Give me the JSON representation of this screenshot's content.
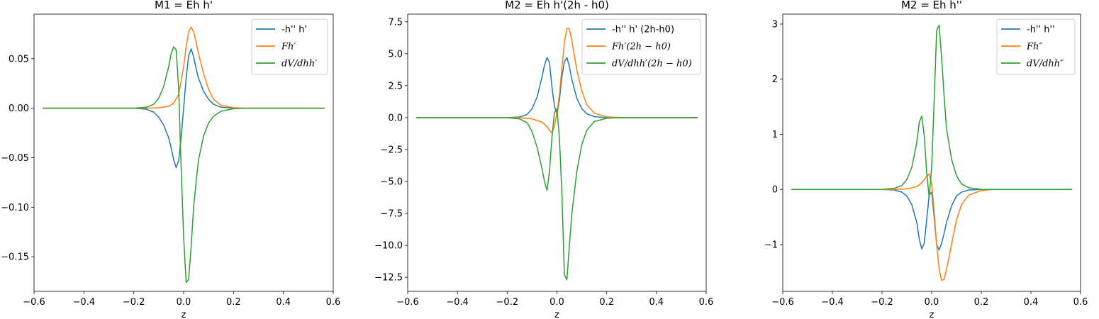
{
  "chart_data": [
    {
      "type": "line",
      "title": "M1 = Eh h'",
      "xlabel": "z",
      "ylabel": "",
      "xlim": [
        -0.6,
        0.6
      ],
      "ylim": [
        -0.185,
        0.095
      ],
      "xticks": [
        -0.6,
        -0.4,
        -0.2,
        0.0,
        0.2,
        0.4,
        0.6
      ],
      "xtick_labels": [
        "−0.6",
        "−0.4",
        "−0.2",
        "0.0",
        "0.2",
        "0.4",
        "0.6"
      ],
      "yticks": [
        -0.15,
        -0.1,
        -0.05,
        0.0,
        0.05
      ],
      "ytick_labels": [
        "−0.15",
        "−0.10",
        "−0.05",
        "0.00",
        "0.05"
      ],
      "legend_position": "top-right",
      "series": [
        {
          "name": "-h'' h'",
          "italic": false,
          "color": "#1f77b4",
          "points": [
            [
              -0.566,
              0
            ],
            [
              -0.2,
              0
            ],
            [
              -0.15,
              -0.001
            ],
            [
              -0.12,
              -0.004
            ],
            [
              -0.1,
              -0.009
            ],
            [
              -0.08,
              -0.017
            ],
            [
              -0.06,
              -0.03
            ],
            [
              -0.05,
              -0.04
            ],
            [
              -0.04,
              -0.052
            ],
            [
              -0.03,
              -0.06
            ],
            [
              -0.02,
              -0.053
            ],
            [
              -0.01,
              -0.03
            ],
            [
              0.0,
              0.0
            ],
            [
              0.01,
              0.03
            ],
            [
              0.02,
              0.053
            ],
            [
              0.03,
              0.06
            ],
            [
              0.04,
              0.052
            ],
            [
              0.05,
              0.04
            ],
            [
              0.06,
              0.03
            ],
            [
              0.08,
              0.017
            ],
            [
              0.1,
              0.009
            ],
            [
              0.12,
              0.004
            ],
            [
              0.15,
              0.001
            ],
            [
              0.2,
              0
            ],
            [
              0.566,
              0
            ]
          ]
        },
        {
          "name": "Fh′",
          "italic": true,
          "color": "#ff7f0e",
          "points": [
            [
              -0.566,
              0
            ],
            [
              -0.15,
              0
            ],
            [
              -0.1,
              0.0005
            ],
            [
              -0.06,
              0.002
            ],
            [
              -0.04,
              0.005
            ],
            [
              -0.02,
              0.014
            ],
            [
              0.0,
              0.042
            ],
            [
              0.01,
              0.062
            ],
            [
              0.02,
              0.077
            ],
            [
              0.03,
              0.082
            ],
            [
              0.04,
              0.077
            ],
            [
              0.05,
              0.067
            ],
            [
              0.06,
              0.055
            ],
            [
              0.08,
              0.035
            ],
            [
              0.1,
              0.019
            ],
            [
              0.12,
              0.009
            ],
            [
              0.15,
              0.003
            ],
            [
              0.2,
              0.0005
            ],
            [
              0.25,
              0
            ],
            [
              0.566,
              0
            ]
          ]
        },
        {
          "name": "dV/dhh′",
          "italic": true,
          "color": "#2ca02c",
          "points": [
            [
              -0.566,
              0
            ],
            [
              -0.2,
              0
            ],
            [
              -0.15,
              0.001
            ],
            [
              -0.12,
              0.004
            ],
            [
              -0.1,
              0.01
            ],
            [
              -0.08,
              0.022
            ],
            [
              -0.06,
              0.042
            ],
            [
              -0.05,
              0.055
            ],
            [
              -0.04,
              0.062
            ],
            [
              -0.03,
              0.059
            ],
            [
              -0.02,
              0.02
            ],
            [
              -0.01,
              -0.06
            ],
            [
              0.0,
              -0.13
            ],
            [
              0.01,
              -0.176
            ],
            [
              0.02,
              -0.173
            ],
            [
              0.03,
              -0.14
            ],
            [
              0.04,
              -0.1
            ],
            [
              0.05,
              -0.075
            ],
            [
              0.06,
              -0.052
            ],
            [
              0.08,
              -0.028
            ],
            [
              0.1,
              -0.015
            ],
            [
              0.12,
              -0.008
            ],
            [
              0.15,
              -0.003
            ],
            [
              0.2,
              -0.0005
            ],
            [
              0.25,
              0
            ],
            [
              0.566,
              0
            ]
          ]
        }
      ]
    },
    {
      "type": "line",
      "title": "M2 = Eh h'(2h - h0)",
      "xlabel": "z",
      "ylabel": "",
      "xlim": [
        -0.6,
        0.6
      ],
      "ylim": [
        -13.6,
        8.1
      ],
      "xticks": [
        -0.6,
        -0.4,
        -0.2,
        0.0,
        0.2,
        0.4,
        0.6
      ],
      "xtick_labels": [
        "−0.6",
        "−0.4",
        "−0.2",
        "0.0",
        "0.2",
        "0.4",
        "0.6"
      ],
      "yticks": [
        -12.5,
        -10.0,
        -7.5,
        -5.0,
        -2.5,
        0.0,
        2.5,
        5.0,
        7.5
      ],
      "ytick_labels": [
        "−12.5",
        "−10.0",
        "−7.5",
        "−5.0",
        "−2.5",
        "0.0",
        "2.5",
        "5.0",
        "7.5"
      ],
      "legend_position": "top-right",
      "series": [
        {
          "name": "-h'' h' (2h-h0)",
          "italic": false,
          "color": "#1f77b4",
          "points": [
            [
              -0.566,
              0
            ],
            [
              -0.2,
              0
            ],
            [
              -0.15,
              0.05
            ],
            [
              -0.12,
              0.25
            ],
            [
              -0.1,
              0.7
            ],
            [
              -0.08,
              1.6
            ],
            [
              -0.06,
              3.2
            ],
            [
              -0.05,
              4.1
            ],
            [
              -0.04,
              4.7
            ],
            [
              -0.03,
              4.3
            ],
            [
              -0.02,
              2.4
            ],
            [
              -0.01,
              0.9
            ],
            [
              0.0,
              0.3
            ],
            [
              0.01,
              1.4
            ],
            [
              0.02,
              3.2
            ],
            [
              0.03,
              4.4
            ],
            [
              0.04,
              4.7
            ],
            [
              0.05,
              4.0
            ],
            [
              0.06,
              3.0
            ],
            [
              0.08,
              1.5
            ],
            [
              0.1,
              0.7
            ],
            [
              0.12,
              0.3
            ],
            [
              0.15,
              0.08
            ],
            [
              0.2,
              0
            ],
            [
              0.566,
              0
            ]
          ]
        },
        {
          "name": "Fh′(2h − h0)",
          "italic": true,
          "color": "#ff7f0e",
          "points": [
            [
              -0.566,
              0
            ],
            [
              -0.15,
              0
            ],
            [
              -0.1,
              -0.1
            ],
            [
              -0.06,
              -0.35
            ],
            [
              -0.04,
              -0.7
            ],
            [
              -0.03,
              -1.0
            ],
            [
              -0.02,
              -1.2
            ],
            [
              -0.01,
              -0.7
            ],
            [
              0.0,
              0.4
            ],
            [
              0.01,
              1.8
            ],
            [
              0.02,
              3.9
            ],
            [
              0.03,
              5.9
            ],
            [
              0.04,
              7.0
            ],
            [
              0.05,
              6.95
            ],
            [
              0.06,
              6.0
            ],
            [
              0.08,
              3.7
            ],
            [
              0.1,
              2.1
            ],
            [
              0.12,
              1.0
            ],
            [
              0.15,
              0.35
            ],
            [
              0.2,
              0.05
            ],
            [
              0.25,
              0
            ],
            [
              0.566,
              0
            ]
          ]
        },
        {
          "name": "dV/dhh′(2h − h0)",
          "italic": true,
          "color": "#2ca02c",
          "points": [
            [
              -0.566,
              0
            ],
            [
              -0.2,
              0
            ],
            [
              -0.15,
              -0.1
            ],
            [
              -0.12,
              -0.4
            ],
            [
              -0.1,
              -1.1
            ],
            [
              -0.08,
              -2.3
            ],
            [
              -0.06,
              -4.0
            ],
            [
              -0.05,
              -5.0
            ],
            [
              -0.04,
              -5.7
            ],
            [
              -0.03,
              -4.2
            ],
            [
              -0.02,
              -1.5
            ],
            [
              -0.01,
              0.4
            ],
            [
              0.0,
              0.7
            ],
            [
              0.01,
              -1.6
            ],
            [
              0.02,
              -6.0
            ],
            [
              0.03,
              -12.3
            ],
            [
              0.04,
              -12.7
            ],
            [
              0.05,
              -10.0
            ],
            [
              0.06,
              -7.5
            ],
            [
              0.08,
              -4.2
            ],
            [
              0.1,
              -2.1
            ],
            [
              0.12,
              -1.0
            ],
            [
              0.15,
              -0.3
            ],
            [
              0.2,
              -0.05
            ],
            [
              0.25,
              0
            ],
            [
              0.566,
              0
            ]
          ]
        }
      ]
    },
    {
      "type": "line",
      "title": "M2 = Eh h''",
      "xlabel": "z",
      "ylabel": "",
      "xlim": [
        -0.6,
        0.6
      ],
      "ylim": [
        -1.85,
        3.18
      ],
      "xticks": [
        -0.6,
        -0.4,
        -0.2,
        0.0,
        0.2,
        0.4,
        0.6
      ],
      "xtick_labels": [
        "−0.6",
        "−0.4",
        "−0.2",
        "0.0",
        "0.2",
        "0.4",
        "0.6"
      ],
      "yticks": [
        -1,
        0,
        1,
        2,
        3
      ],
      "ytick_labels": [
        "−1",
        "0",
        "1",
        "2",
        "3"
      ],
      "legend_position": "top-right",
      "series": [
        {
          "name": "-h'' h''",
          "italic": false,
          "color": "#1f77b4",
          "points": [
            [
              -0.566,
              0
            ],
            [
              -0.2,
              0
            ],
            [
              -0.15,
              -0.01
            ],
            [
              -0.12,
              -0.05
            ],
            [
              -0.1,
              -0.12
            ],
            [
              -0.08,
              -0.28
            ],
            [
              -0.06,
              -0.6
            ],
            [
              -0.05,
              -0.9
            ],
            [
              -0.04,
              -1.08
            ],
            [
              -0.03,
              -0.98
            ],
            [
              -0.02,
              -0.55
            ],
            [
              -0.01,
              -0.1
            ],
            [
              0.0,
              -0.05
            ],
            [
              0.01,
              -0.5
            ],
            [
              0.02,
              -1.0
            ],
            [
              0.03,
              -1.1
            ],
            [
              0.04,
              -0.98
            ],
            [
              0.05,
              -0.8
            ],
            [
              0.06,
              -0.6
            ],
            [
              0.08,
              -0.3
            ],
            [
              0.1,
              -0.12
            ],
            [
              0.12,
              -0.05
            ],
            [
              0.15,
              -0.01
            ],
            [
              0.2,
              0
            ],
            [
              0.566,
              0
            ]
          ]
        },
        {
          "name": "Fh″",
          "italic": true,
          "color": "#ff7f0e",
          "points": [
            [
              -0.566,
              0
            ],
            [
              -0.15,
              0
            ],
            [
              -0.1,
              0.01
            ],
            [
              -0.06,
              0.05
            ],
            [
              -0.04,
              0.12
            ],
            [
              -0.02,
              0.24
            ],
            [
              -0.01,
              0.28
            ],
            [
              0.0,
              0.1
            ],
            [
              0.01,
              -0.4
            ],
            [
              0.02,
              -1.0
            ],
            [
              0.03,
              -1.45
            ],
            [
              0.04,
              -1.65
            ],
            [
              0.05,
              -1.63
            ],
            [
              0.06,
              -1.45
            ],
            [
              0.08,
              -1.0
            ],
            [
              0.1,
              -0.55
            ],
            [
              0.12,
              -0.28
            ],
            [
              0.15,
              -0.1
            ],
            [
              0.2,
              -0.02
            ],
            [
              0.25,
              0
            ],
            [
              0.566,
              0
            ]
          ]
        },
        {
          "name": "dV/dhh″",
          "italic": true,
          "color": "#2ca02c",
          "points": [
            [
              -0.566,
              0
            ],
            [
              -0.2,
              0
            ],
            [
              -0.15,
              0.02
            ],
            [
              -0.12,
              0.07
            ],
            [
              -0.1,
              0.18
            ],
            [
              -0.08,
              0.4
            ],
            [
              -0.06,
              0.85
            ],
            [
              -0.05,
              1.22
            ],
            [
              -0.04,
              1.33
            ],
            [
              -0.03,
              0.98
            ],
            [
              -0.02,
              0.3
            ],
            [
              -0.01,
              -0.15
            ],
            [
              0.0,
              0.4
            ],
            [
              0.01,
              1.6
            ],
            [
              0.02,
              2.88
            ],
            [
              0.03,
              2.98
            ],
            [
              0.04,
              2.4
            ],
            [
              0.05,
              1.7
            ],
            [
              0.06,
              1.1
            ],
            [
              0.08,
              0.55
            ],
            [
              0.1,
              0.25
            ],
            [
              0.12,
              0.1
            ],
            [
              0.15,
              0.03
            ],
            [
              0.2,
              0
            ],
            [
              0.566,
              0
            ]
          ]
        }
      ]
    }
  ]
}
